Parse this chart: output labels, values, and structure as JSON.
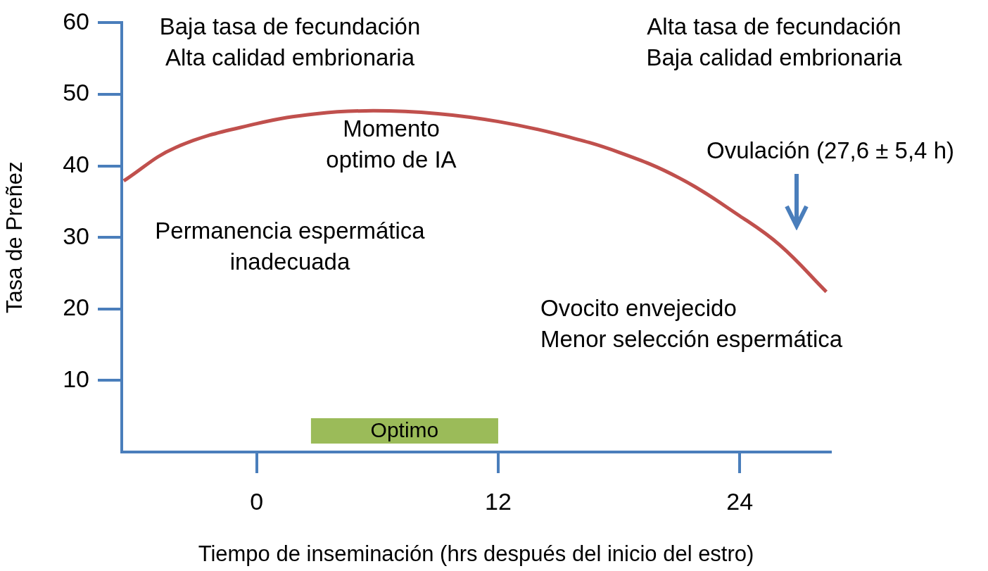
{
  "chart_data": {
    "type": "line",
    "xlabel": "Tiempo de inseminación (hrs después del inicio del estro)",
    "ylabel": "Tasa de Preñez",
    "x": [
      -6.6,
      -4,
      0,
      3,
      5.8,
      9,
      12,
      15,
      18,
      21,
      24,
      26,
      28.3
    ],
    "series": [
      {
        "color": "#c0504d",
        "values": [
          37.9,
          42.6,
          45.9,
          47.3,
          47.7,
          47.3,
          46.2,
          44.4,
          41.9,
          38.3,
          33.0,
          28.9,
          22.4
        ]
      }
    ],
    "xlim": [
      -6.7,
      28.5
    ],
    "xticks": [
      0,
      12,
      24
    ],
    "ylim": [
      0,
      60
    ],
    "yticks": [
      10,
      20,
      30,
      40,
      50,
      60
    ],
    "grid": false,
    "legend": false,
    "marker": "none",
    "line_style": "solid",
    "bands": [
      {
        "axis": "x",
        "from": 2.7,
        "to": 12,
        "label": "Optimo",
        "color": "#9bbb59"
      }
    ],
    "annotations": [
      "Baja tasa de fecundación\nAlta calidad embrionaria",
      "Alta tasa de fecundación\nBaja calidad embrionaria",
      "Momento\noptimo de IA",
      "Permanencia espermática\ninadecuada",
      "Ovulación (27,6 ± 5,4 h)",
      "Ovocito envejecido\nMenor selección espermática"
    ]
  }
}
